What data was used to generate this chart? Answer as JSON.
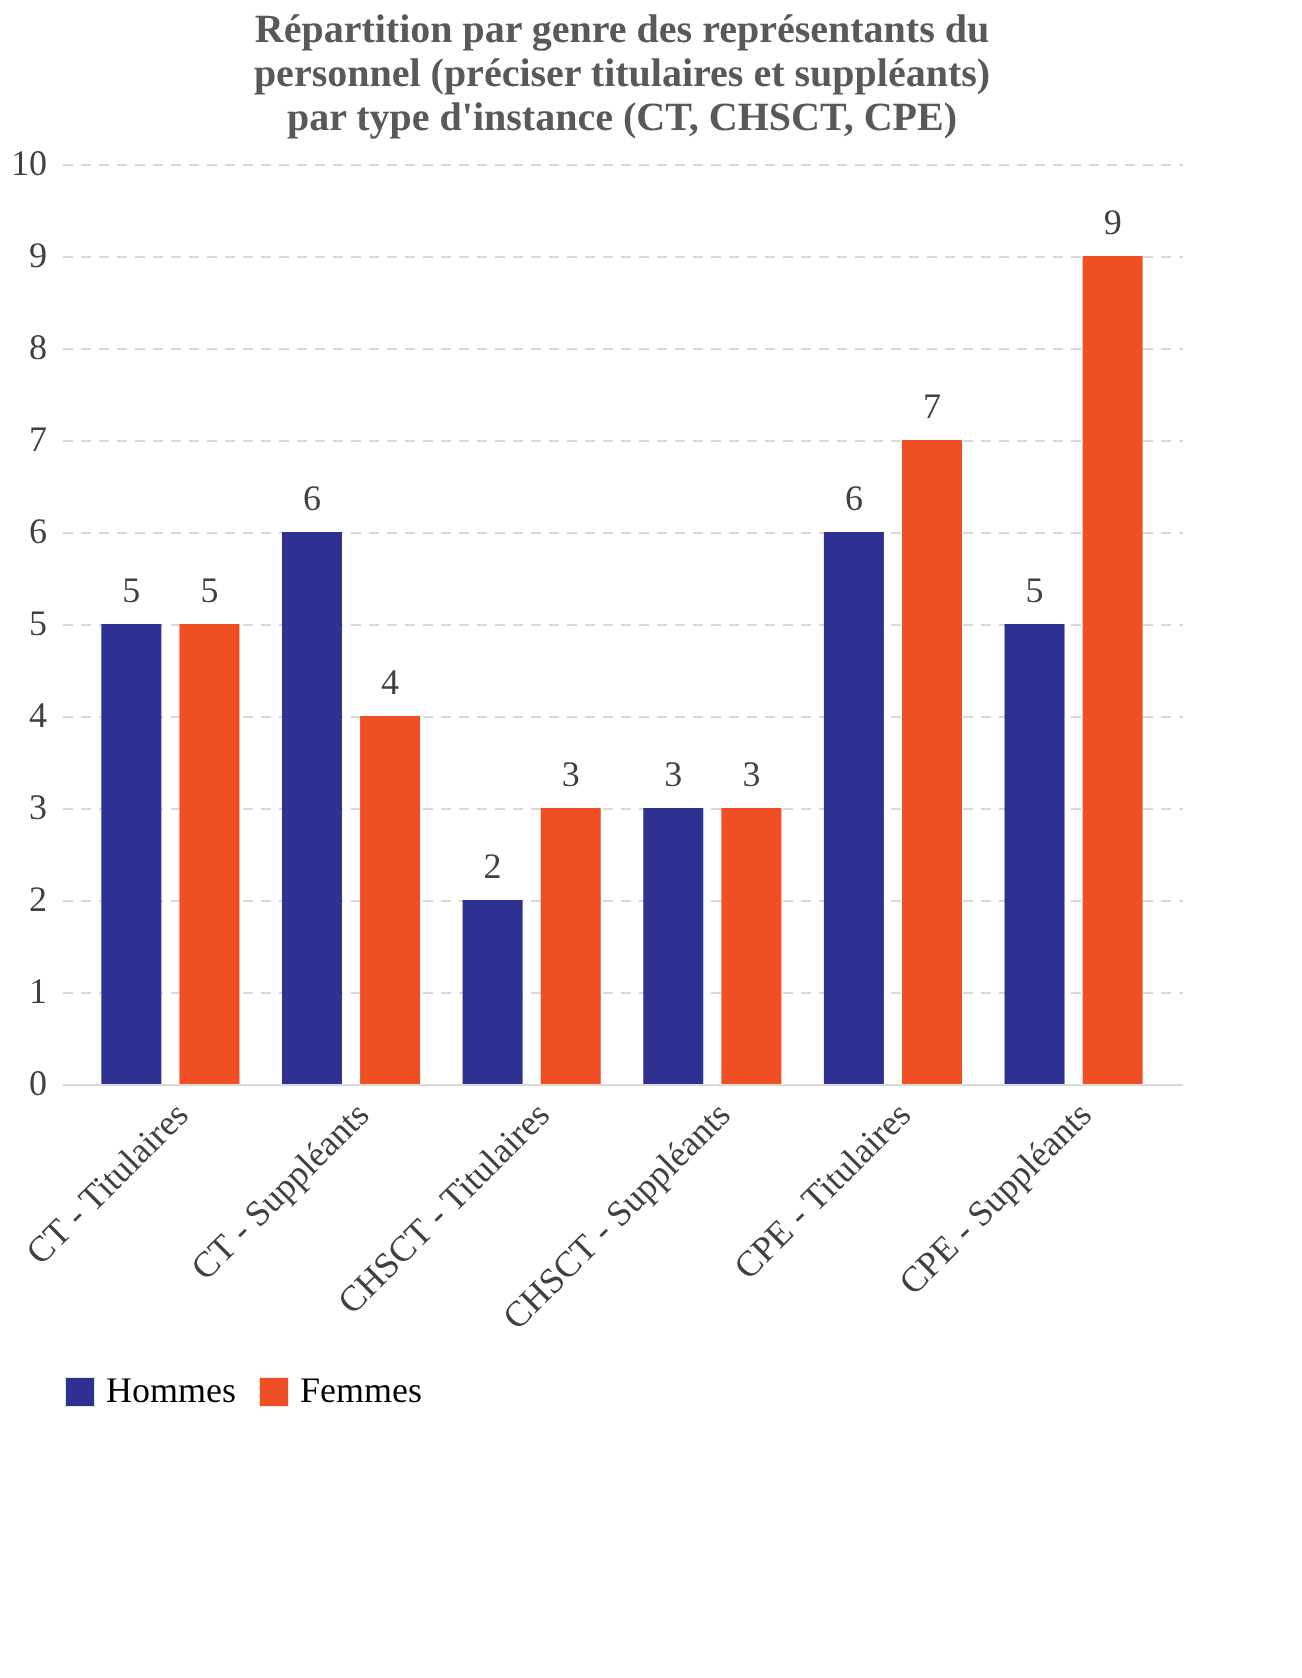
{
  "chart_data": {
    "type": "bar",
    "title": "Répartition par genre des représentants du personnel (préciser titulaires et suppléants) par type d'instance (CT, CHSCT, CPE)",
    "categories": [
      "CT - Titulaires",
      "CT - Suppléants",
      "CHSCT - Titulaires",
      "CHSCT - Suppléants",
      "CPE - Titulaires",
      "CPE - Suppléants"
    ],
    "series": [
      {
        "name": "Hommes",
        "color": "#2e3192",
        "values": [
          5,
          6,
          2,
          3,
          6,
          5
        ]
      },
      {
        "name": "Femmes",
        "color": "#f04e23",
        "values": [
          5,
          4,
          3,
          3,
          7,
          9
        ]
      }
    ],
    "ylim": [
      0,
      10
    ],
    "yticks": [
      0,
      1,
      2,
      3,
      4,
      5,
      6,
      7,
      8,
      9,
      10
    ],
    "grid": "y",
    "legend": "bottom",
    "data_labels": true
  }
}
